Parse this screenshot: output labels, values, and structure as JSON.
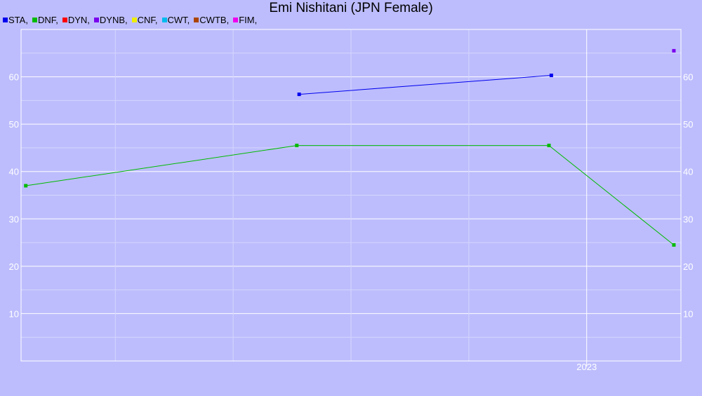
{
  "chart_data": {
    "type": "line",
    "title": "Emi Nishitani (JPN Female)",
    "xlabel": "",
    "ylabel": "",
    "x_tick_labels": [
      {
        "label": "2023",
        "x": 2023.0
      }
    ],
    "xlim": [
      2020.6,
      2023.4
    ],
    "y_ticks": [
      10,
      20,
      30,
      40,
      50,
      60
    ],
    "ylim": [
      0,
      70
    ],
    "grid": true,
    "legend_position": "top-left",
    "legend": [
      {
        "name": "STA",
        "color": "#0000ee"
      },
      {
        "name": "DNF",
        "color": "#00bb00"
      },
      {
        "name": "DYN",
        "color": "#ff0000"
      },
      {
        "name": "DYNB",
        "color": "#7a00ee"
      },
      {
        "name": "CNF",
        "color": "#eeee00"
      },
      {
        "name": "CWT",
        "color": "#00bbee"
      },
      {
        "name": "CWTB",
        "color": "#aa4400"
      },
      {
        "name": "FIM",
        "color": "#ee00ee"
      }
    ],
    "series": [
      {
        "name": "STA",
        "color": "#0000ee",
        "x": [
          2021.78,
          2022.85
        ],
        "values": [
          56.3,
          60.3
        ]
      },
      {
        "name": "DNF",
        "color": "#00bb00",
        "x": [
          2020.62,
          2021.77,
          2022.84,
          2023.37
        ],
        "values": [
          37.0,
          45.5,
          45.5,
          24.5
        ]
      },
      {
        "name": "DYNB",
        "color": "#7a00ee",
        "x": [
          2023.37
        ],
        "values": [
          65.5
        ]
      }
    ]
  }
}
